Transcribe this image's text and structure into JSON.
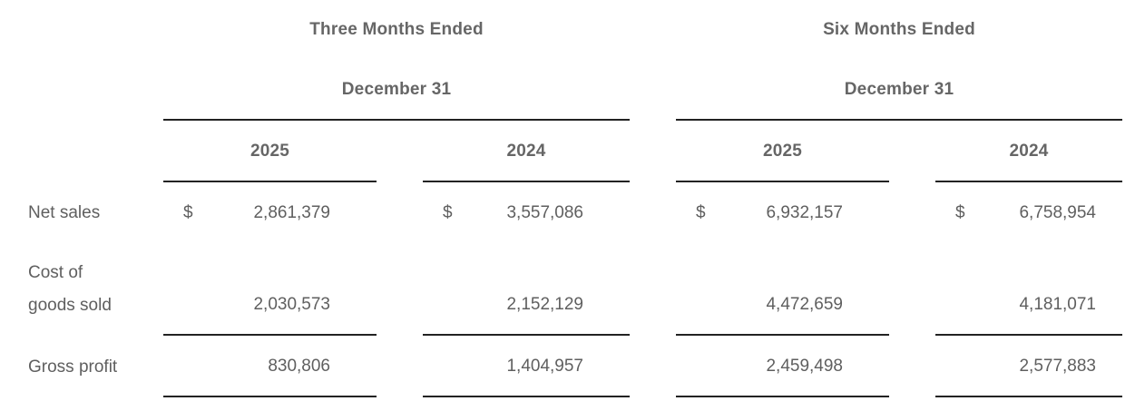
{
  "header": {
    "three_months_ended": "Three Months Ended",
    "three_months_period": "December 31",
    "six_months_ended": "Six Months Ended",
    "six_months_period": "December 31"
  },
  "columns": [
    "2025",
    "2024",
    "2025",
    "2024"
  ],
  "currency_symbol": "$",
  "rows": {
    "net_sales": {
      "label": "Net sales",
      "values": [
        "2,861,379",
        "3,557,086",
        "6,932,157",
        "6,758,954"
      ]
    },
    "cost_of_goods_sold": {
      "label_line1": "Cost of",
      "label_line2": "goods sold",
      "values": [
        "2,030,573",
        "2,152,129",
        "4,472,659",
        "4,181,071"
      ]
    },
    "gross_profit": {
      "label": "Gross profit",
      "values": [
        "830,806",
        "1,404,957",
        "2,459,498",
        "2,577,883"
      ]
    }
  }
}
